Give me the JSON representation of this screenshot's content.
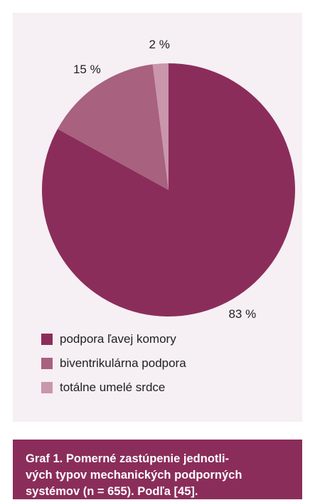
{
  "chart_data": {
    "type": "pie",
    "slices": [
      {
        "label": "podpora ľavej komory",
        "value": 83,
        "value_label": "83 %",
        "color": "#8b2d5a"
      },
      {
        "label": "biventrikulárna podpora",
        "value": 15,
        "value_label": "15 %",
        "color": "#a8617f"
      },
      {
        "label": "totálne umelé srdce",
        "value": 2,
        "value_label": "2 %",
        "color": "#c996ac"
      }
    ],
    "legend_position": "bottom-left"
  },
  "caption": {
    "lines": [
      "Graf 1. Pomerné zastúpenie jednotli-",
      "vých typov mechanických podporných",
      "systémov (n = 655). Podľa [45]."
    ]
  },
  "colors": {
    "panel_background": "#f6eff3",
    "caption_background": "#8b2d5a",
    "caption_text": "#ffffff"
  }
}
